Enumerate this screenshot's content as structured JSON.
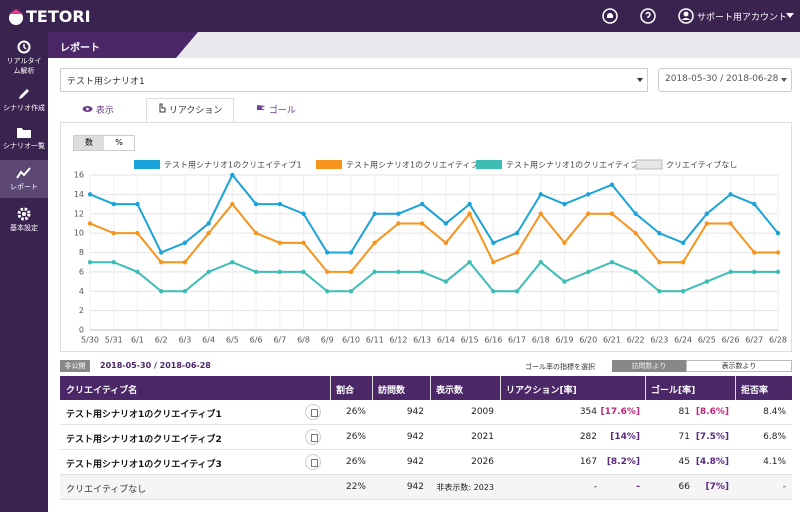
{
  "topbar": {
    "logo": "TETORI",
    "account": "サポート用アカウント"
  },
  "sidebar": {
    "items": [
      {
        "label": "リアルタイム解析"
      },
      {
        "label": "シナリオ作成"
      },
      {
        "label": "シナリオ一覧"
      },
      {
        "label": "レポート",
        "active": true
      },
      {
        "label": "基本設定"
      }
    ]
  },
  "header": {
    "title": "レポート"
  },
  "controls": {
    "scenario": "テスト用シナリオ1",
    "date_range": "2018-05-30 / 2018-06-28"
  },
  "tabs": [
    {
      "label": "表示"
    },
    {
      "label": "リアクション",
      "active": true
    },
    {
      "label": "ゴール"
    }
  ],
  "toolbar": {
    "buttons": [
      "数",
      "%"
    ]
  },
  "chart_data": {
    "type": "line",
    "categories": [
      "5/30",
      "5/31",
      "6/1",
      "6/2",
      "6/3",
      "6/4",
      "6/5",
      "6/6",
      "6/7",
      "6/8",
      "6/9",
      "6/10",
      "6/11",
      "6/12",
      "6/13",
      "6/14",
      "6/15",
      "6/16",
      "6/17",
      "6/18",
      "6/19",
      "6/20",
      "6/21",
      "6/22",
      "6/23",
      "6/24",
      "6/25",
      "6/26",
      "6/27",
      "6/28"
    ],
    "series": [
      {
        "name": "テスト用シナリオ1のクリエイティブ1",
        "color": "#1aa3d9",
        "values": [
          14,
          13,
          13,
          8,
          9,
          11,
          16,
          13,
          13,
          12,
          8,
          8,
          12,
          12,
          13,
          11,
          13,
          9,
          10,
          14,
          13,
          14,
          15,
          12,
          10,
          9,
          12,
          14,
          13,
          10
        ]
      },
      {
        "name": "テスト用シナリオ1のクリエイティブ2",
        "color": "#f7941d",
        "values": [
          11,
          10,
          10,
          7,
          7,
          10,
          13,
          10,
          9,
          9,
          6,
          6,
          9,
          11,
          11,
          9,
          12,
          7,
          8,
          12,
          9,
          12,
          12,
          10,
          7,
          7,
          11,
          11,
          8,
          8
        ]
      },
      {
        "name": "テスト用シナリオ1のクリエイティブ3",
        "color": "#3dbdb4",
        "values": [
          7,
          7,
          6,
          4,
          4,
          6,
          7,
          6,
          6,
          6,
          4,
          4,
          6,
          6,
          6,
          5,
          7,
          4,
          4,
          7,
          5,
          6,
          7,
          6,
          4,
          4,
          5,
          6,
          6,
          6
        ]
      },
      {
        "name": "クリエイティブなし",
        "color": "#e6e6e6",
        "hidden": true,
        "values": [
          null,
          null,
          null,
          null,
          null,
          null,
          null,
          null,
          null,
          null,
          null,
          null,
          null,
          null,
          null,
          null,
          null,
          null,
          null,
          null,
          null,
          null,
          null,
          null,
          null,
          null,
          null,
          null,
          null,
          null
        ]
      }
    ],
    "ylim": [
      0,
      16
    ],
    "yticks": [
      0,
      2,
      4,
      6,
      8,
      10,
      12,
      14,
      16
    ],
    "grid": true
  },
  "table": {
    "badge": "非公開",
    "date_range": "2018-05-30 / 2018-06-28",
    "goal_metric_label": "ゴール率の指標を選択",
    "goal_metric_options": [
      {
        "label": "訪問数より",
        "active": true
      },
      {
        "label": "表示数より"
      }
    ],
    "columns": [
      "クリエイティブ名",
      "割合",
      "訪問数",
      "表示数",
      "リアクション[率]",
      "ゴール[率]",
      "拒否率"
    ],
    "rows": [
      {
        "name": "テスト用シナリオ1のクリエイティブ1",
        "share": "26%",
        "visits": "942",
        "views": "2009",
        "reaction": "354",
        "reaction_rate": "[17.6%]",
        "goal": "81",
        "goal_rate": "[8.6%]",
        "refusal": "8.4%"
      },
      {
        "name": "テスト用シナリオ1のクリエイティブ2",
        "share": "26%",
        "visits": "942",
        "views": "2021",
        "reaction": "282",
        "reaction_rate": "[14%]",
        "goal": "71",
        "goal_rate": "[7.5%]",
        "refusal": "6.8%"
      },
      {
        "name": "テスト用シナリオ1のクリエイティブ3",
        "share": "26%",
        "visits": "942",
        "views": "2026",
        "reaction": "167",
        "reaction_rate": "[8.2%]",
        "goal": "45",
        "goal_rate": "[4.8%]",
        "refusal": "4.1%"
      },
      {
        "name": "クリエイティブなし",
        "share": "22%",
        "visits": "942",
        "views": "非表示数: 2023",
        "reaction": "-",
        "reaction_rate": "-",
        "goal": "66",
        "goal_rate": "[7%]",
        "refusal": "-"
      }
    ]
  }
}
